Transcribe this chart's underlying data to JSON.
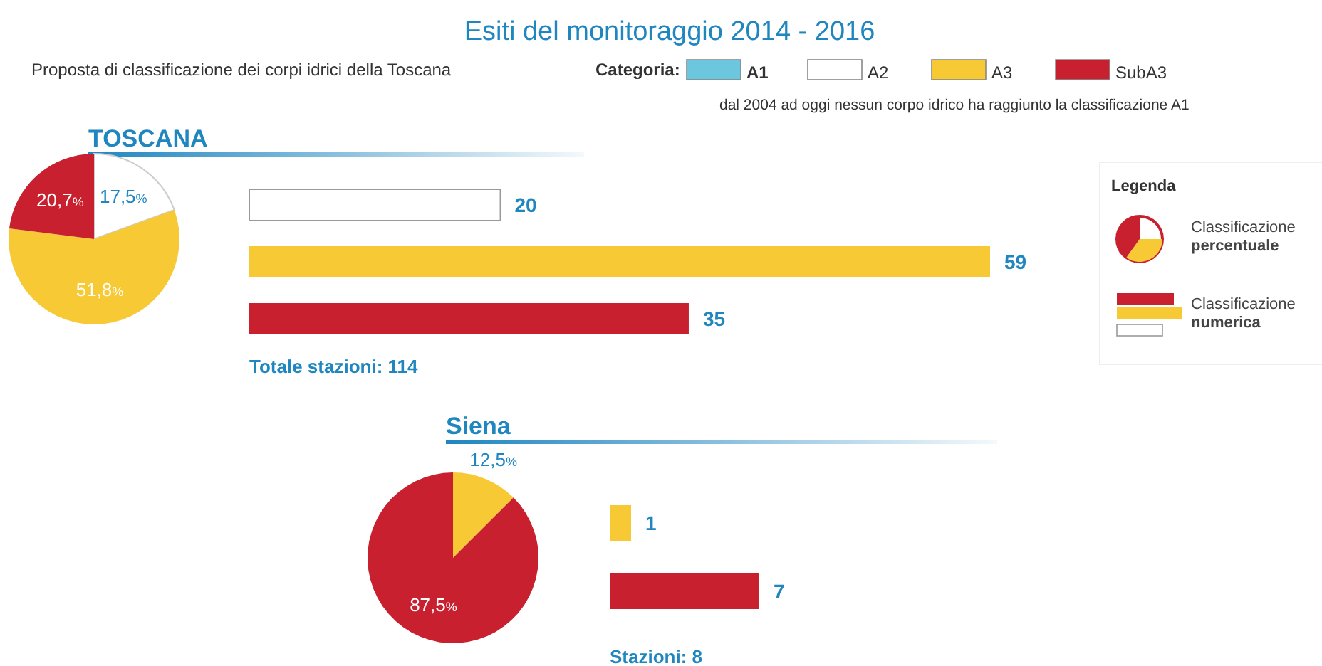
{
  "chart_data": [
    {
      "type": "other",
      "title": "Esiti del monitoraggio 2014 - 2016",
      "subtitle": "Proposta di classificazione dei corpi idrici della Toscana",
      "legend_title": "Categoria:",
      "legend": "top",
      "series": [
        {
          "name": "A1",
          "color": "#6cc6dd"
        },
        {
          "name": "A2",
          "color": "#ffffff"
        },
        {
          "name": "A3",
          "color": "#f7c935"
        },
        {
          "name": "SubA3",
          "color": "#c8202e"
        }
      ],
      "annotations": [
        "dal 2004 ad oggi nessun corpo idrico ha raggiunto la classificazione A1",
        "Legenda",
        "Classificazione percentuale",
        "Classificazione numerica"
      ]
    },
    {
      "type": "pie",
      "title": "TOSCANA",
      "categories": [
        null,
        null,
        null
      ],
      "values": [
        17.5,
        51.8,
        20.7
      ],
      "colors": [
        "#ffffff",
        "#f7c935",
        "#c8202e"
      ],
      "value_labels": [
        "17,5%",
        "51,8%",
        "20,7%"
      ]
    },
    {
      "type": "bar",
      "orientation": "horizontal",
      "categories": [
        null,
        null,
        null
      ],
      "values": [
        20,
        59,
        35
      ],
      "colors": [
        "#ffffff",
        "#f7c935",
        "#c8202e"
      ],
      "data_labels": true,
      "annotations": [
        "Totale stazioni: 114"
      ]
    },
    {
      "type": "pie",
      "title": "Siena",
      "categories": [
        null,
        null
      ],
      "values": [
        12.5,
        87.5
      ],
      "colors": [
        "#f7c935",
        "#c8202e"
      ],
      "value_labels": [
        "12,5%",
        "87,5%"
      ]
    },
    {
      "type": "bar",
      "orientation": "horizontal",
      "categories": [
        null,
        null
      ],
      "values": [
        1,
        7
      ],
      "colors": [
        "#f7c935",
        "#c8202e"
      ],
      "data_labels": true,
      "annotations": [
        "Stazioni: 8"
      ]
    }
  ]
}
